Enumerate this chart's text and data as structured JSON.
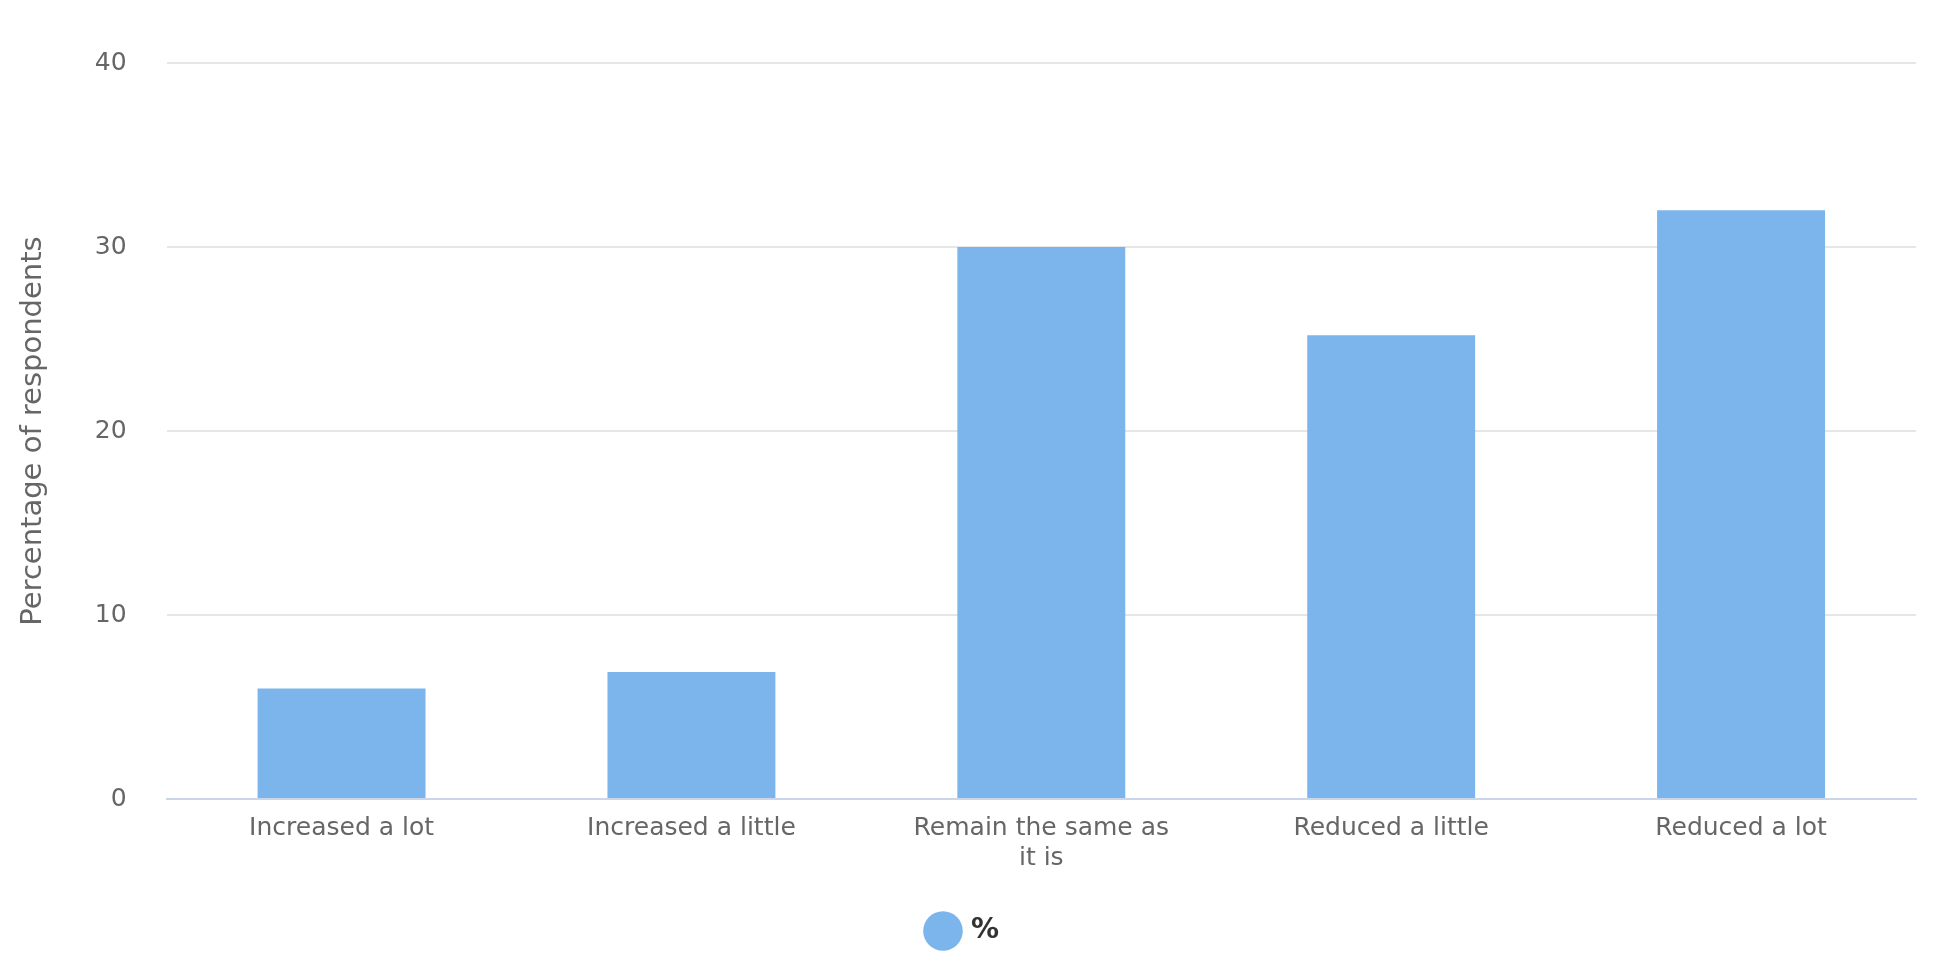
{
  "chart_data": {
    "type": "bar",
    "categories": [
      "Increased a lot",
      "Increased a little",
      "Remain the same as it is",
      "Reduced a little",
      "Reduced a lot"
    ],
    "series": [
      {
        "name": "%",
        "color": "#7cb5ec",
        "values": [
          6,
          6.9,
          30,
          25.2,
          32
        ]
      }
    ],
    "ylabel": "Percentage of respondents",
    "ylim": [
      0,
      40
    ],
    "yticks": [
      0,
      10,
      20,
      30,
      40
    ],
    "grid": "y",
    "legend": "bottom"
  }
}
